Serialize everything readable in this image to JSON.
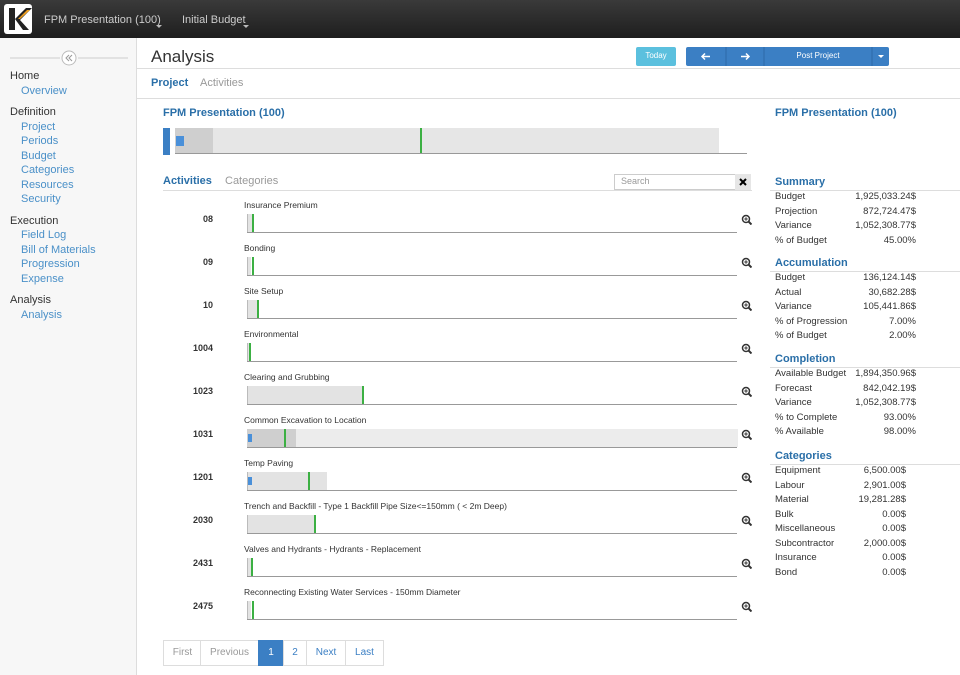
{
  "topbar": {
    "project": "FPM Presentation (100)",
    "budget": "Initial Budget"
  },
  "sidebar": {
    "groups": [
      {
        "title": "Home",
        "items": [
          "Overview"
        ]
      },
      {
        "title": "Definition",
        "items": [
          "Project",
          "Periods",
          "Budget",
          "Categories",
          "Resources",
          "Security"
        ]
      },
      {
        "title": "Execution",
        "items": [
          "Field Log",
          "Bill of Materials",
          "Progression",
          "Expense"
        ]
      },
      {
        "title": "Analysis",
        "items": [
          "Analysis"
        ]
      }
    ]
  },
  "page": {
    "title": "Analysis",
    "buttons": {
      "today": "Today",
      "post": "Post Project"
    },
    "tabs": [
      "Project",
      "Activities"
    ]
  },
  "project": {
    "title": "FPM Presentation (100)"
  },
  "activities": {
    "tabs": [
      "Activities",
      "Categories"
    ],
    "search_placeholder": "Search",
    "rows": [
      {
        "code": "08",
        "name": "Insurance Premium"
      },
      {
        "code": "09",
        "name": "Bonding"
      },
      {
        "code": "10",
        "name": "Site Setup"
      },
      {
        "code": "1004",
        "name": "Environmental"
      },
      {
        "code": "1023",
        "name": "Clearing and Grubbing"
      },
      {
        "code": "1031",
        "name": "Common Excavation to Location"
      },
      {
        "code": "1201",
        "name": "Temp Paving"
      },
      {
        "code": "2030",
        "name": "Trench and Backfill - Type 1 Backfill Pipe Size<=150mm ( < 2m Deep)"
      },
      {
        "code": "2431",
        "name": "Valves and Hydrants - Hydrants - Replacement"
      },
      {
        "code": "2475",
        "name": "Reconnecting Existing Water Services - 150mm Diameter"
      }
    ]
  },
  "pagination": [
    "First",
    "Previous",
    1,
    2,
    "Next",
    "Last"
  ],
  "panel": {
    "title": "FPM Presentation (100)",
    "sections": [
      {
        "title": "Summary",
        "rows": [
          [
            "Budget",
            "1,925,033.24$"
          ],
          [
            "Projection",
            "872,724.47$"
          ],
          [
            "Variance",
            "1,052,308.77$"
          ],
          [
            "% of Budget",
            "45.00%"
          ]
        ]
      },
      {
        "title": "Accumulation",
        "rows": [
          [
            "Budget",
            "136,124.14$"
          ],
          [
            "Actual",
            "30,682.28$"
          ],
          [
            "Variance",
            "105,441.86$"
          ],
          [
            "% of Progression",
            "7.00%"
          ],
          [
            "% of Budget",
            "2.00%"
          ]
        ]
      },
      {
        "title": "Completion",
        "rows": [
          [
            "Available Budget",
            "1,894,350.96$"
          ],
          [
            "Forecast",
            "842,042.19$"
          ],
          [
            "Variance",
            "1,052,308.77$"
          ],
          [
            "% to Complete",
            "93.00%"
          ],
          [
            "% Available",
            "98.00%"
          ]
        ]
      },
      {
        "title": "Categories",
        "rows": [
          [
            "Equipment",
            "6,500.00$"
          ],
          [
            "Labour",
            "2,901.00$"
          ],
          [
            "Material",
            "19,281.28$"
          ],
          [
            "Bulk",
            "0.00$"
          ],
          [
            "Miscellaneous",
            "0.00$"
          ],
          [
            "Subcontractor",
            "2,000.00$"
          ],
          [
            "Insurance",
            "0.00$"
          ],
          [
            "Bond",
            "0.00$"
          ]
        ]
      }
    ]
  }
}
